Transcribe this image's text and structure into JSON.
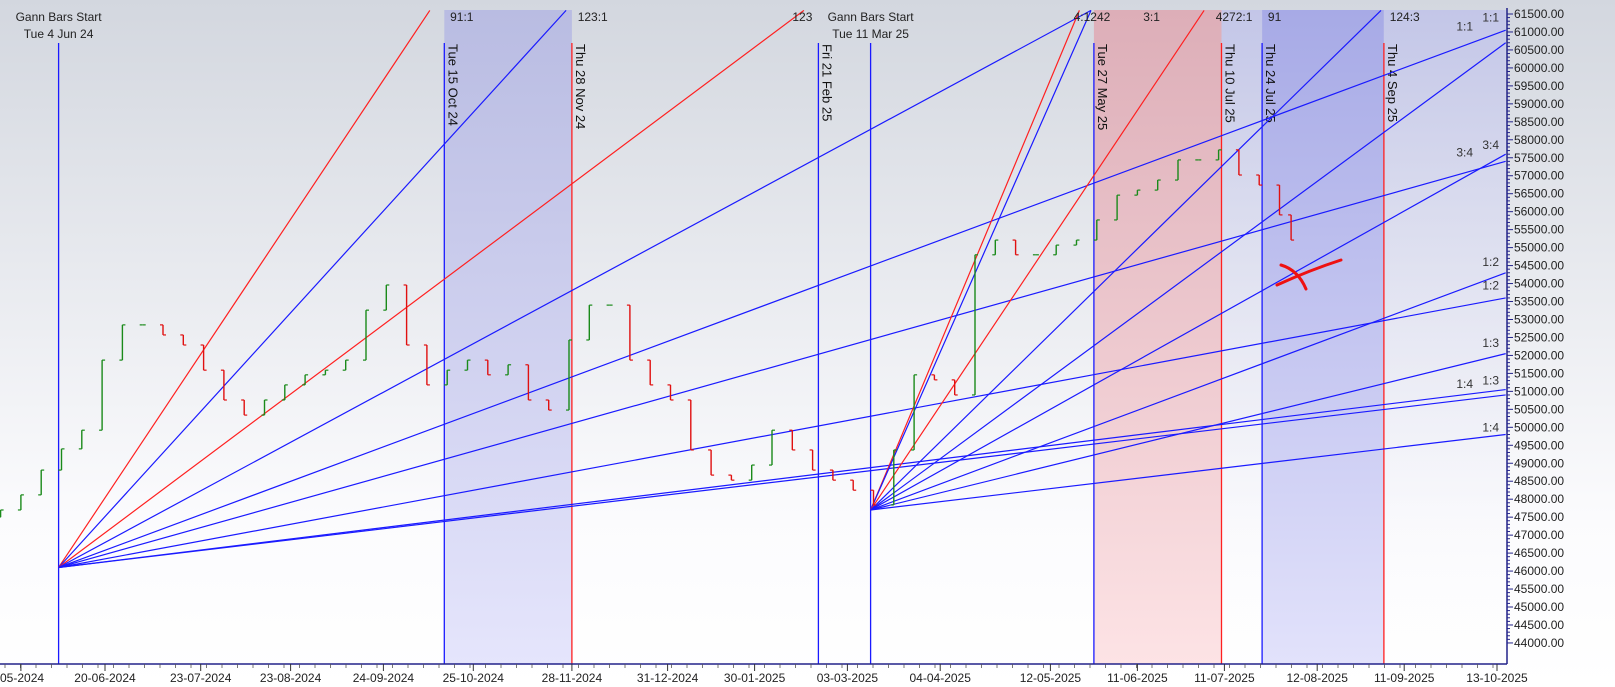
{
  "chart_data": {
    "type": "ohlc-bar with gann fans",
    "colors": {
      "fan_blue": "#1a1aff",
      "fan_red": "#ff2020",
      "bar_up": "#1a8a1a",
      "bar_down": "#e01010",
      "axis": "#22228a"
    },
    "ylim": [
      44000,
      61500
    ],
    "y_ticks": [
      "61500.00",
      "61000.00",
      "60500.00",
      "60000.00",
      "59500.00",
      "59000.00",
      "58500.00",
      "58000.00",
      "57500.00",
      "57000.00",
      "56500.00",
      "56000.00",
      "55500.00",
      "55000.00",
      "54500.00",
      "54000.00",
      "53500.00",
      "53000.00",
      "52500.00",
      "52000.00",
      "51500.00",
      "51000.00",
      "50500.00",
      "50000.00",
      "49500.00",
      "49000.00",
      "48500.00",
      "48000.00",
      "47500.00",
      "47000.00",
      "46500.00",
      "46000.00",
      "45500.00",
      "45000.00",
      "44500.00",
      "44000.00"
    ],
    "x_ticks": [
      {
        "date": "2024-05-22",
        "label": "05-2024"
      },
      {
        "date": "2024-06-20",
        "label": "20-06-2024"
      },
      {
        "date": "2024-07-23",
        "label": "23-07-2024"
      },
      {
        "date": "2024-08-23",
        "label": "23-08-2024"
      },
      {
        "date": "2024-09-24",
        "label": "24-09-2024"
      },
      {
        "date": "2024-10-25",
        "label": "25-10-2024"
      },
      {
        "date": "2024-11-28",
        "label": "28-11-2024"
      },
      {
        "date": "2024-12-31",
        "label": "31-12-2024"
      },
      {
        "date": "2025-01-30",
        "label": "30-01-2025"
      },
      {
        "date": "2025-03-03",
        "label": "03-03-2025"
      },
      {
        "date": "2025-04-04",
        "label": "04-04-2025"
      },
      {
        "date": "2025-05-12",
        "label": "12-05-2025"
      },
      {
        "date": "2025-06-11",
        "label": "11-06-2025"
      },
      {
        "date": "2025-07-11",
        "label": "11-07-2025"
      },
      {
        "date": "2025-08-12",
        "label": "12-08-2025"
      },
      {
        "date": "2025-09-11",
        "label": "11-09-2025"
      },
      {
        "date": "2025-10-13",
        "label": "13-10-2025"
      }
    ],
    "price_dates": [
      "2024-05-15",
      "2024-05-22",
      "2024-05-29",
      "2024-06-05",
      "2024-06-12",
      "2024-06-19",
      "2024-06-26",
      "2024-07-03",
      "2024-07-10",
      "2024-07-17",
      "2024-07-24",
      "2024-07-31",
      "2024-08-07",
      "2024-08-14",
      "2024-08-21",
      "2024-08-28",
      "2024-09-04",
      "2024-09-11",
      "2024-09-18",
      "2024-09-25",
      "2024-10-02",
      "2024-10-09",
      "2024-10-16",
      "2024-10-23",
      "2024-10-30",
      "2024-11-06",
      "2024-11-13",
      "2024-11-20",
      "2024-11-27",
      "2024-12-04",
      "2024-12-11",
      "2024-12-18",
      "2024-12-25",
      "2025-01-01",
      "2025-01-08",
      "2025-01-15",
      "2025-01-22",
      "2025-01-29",
      "2025-02-05",
      "2025-02-12",
      "2025-02-19",
      "2025-02-26",
      "2025-03-05",
      "2025-03-12",
      "2025-03-19",
      "2025-03-26",
      "2025-04-02",
      "2025-04-09",
      "2025-04-16",
      "2025-04-23",
      "2025-04-30",
      "2025-05-07",
      "2025-05-14",
      "2025-05-21",
      "2025-05-28",
      "2025-06-04",
      "2025-06-11",
      "2025-06-18",
      "2025-06-25",
      "2025-07-02",
      "2025-07-09",
      "2025-07-16",
      "2025-07-23",
      "2025-07-30",
      "2025-08-03"
    ],
    "price_close": [
      47700,
      48120,
      48810,
      49400,
      49920,
      51870,
      52850,
      52850,
      52570,
      52290,
      51590,
      50760,
      50340,
      50760,
      51180,
      51460,
      51590,
      51870,
      53260,
      53960,
      52290,
      51180,
      51590,
      51870,
      51460,
      51740,
      50760,
      50480,
      52430,
      53400,
      53400,
      51870,
      51180,
      50760,
      49370,
      48670,
      48530,
      48950,
      49920,
      49370,
      48810,
      48530,
      48250,
      47840,
      49370,
      51460,
      51320,
      50900,
      54800,
      55210,
      54800,
      54800,
      55070,
      55210,
      55770,
      56460,
      56600,
      56880,
      57440,
      57440,
      57720,
      57020,
      56740,
      55910,
      55210
    ],
    "gann_origins": {
      "A": {
        "date": "2024-06-04",
        "price": 46100,
        "title": "Gann Bars Start",
        "subtitle": "Tue 4 Jun 24"
      },
      "B": {
        "date": "2025-03-11",
        "price": 47700,
        "title": "Gann Bars Start",
        "subtitle": "Tue 11 Mar 25"
      }
    },
    "fan_lines": [
      {
        "origin": "A",
        "to_date": "2024-10-10",
        "to_price": 61600,
        "color": "red"
      },
      {
        "origin": "A",
        "to_date": "2024-11-26",
        "to_price": 61600,
        "color": "blue"
      },
      {
        "origin": "A",
        "to_date": "2025-02-16",
        "to_price": 61600,
        "color": "red"
      },
      {
        "origin": "A",
        "to_date": "2025-05-26",
        "to_price": 61600,
        "color": "blue"
      },
      {
        "origin": "A",
        "to_date": "2025-10-16",
        "to_price": 61050,
        "color": "blue"
      },
      {
        "origin": "A",
        "to_date": "2025-10-16",
        "to_price": 57400,
        "color": "blue"
      },
      {
        "origin": "A",
        "to_date": "2025-10-16",
        "to_price": 53600,
        "color": "blue"
      },
      {
        "origin": "A",
        "to_date": "2025-10-16",
        "to_price": 51050,
        "color": "blue"
      },
      {
        "origin": "A",
        "to_date": "2025-10-16",
        "to_price": 50900,
        "color": "blue"
      },
      {
        "origin": "B",
        "to_date": "2025-05-22",
        "to_price": 61600,
        "color": "red"
      },
      {
        "origin": "B",
        "to_date": "2025-05-26",
        "to_price": 61600,
        "color": "blue"
      },
      {
        "origin": "B",
        "to_date": "2025-07-04",
        "to_price": 61600,
        "color": "red"
      },
      {
        "origin": "B",
        "to_date": "2025-09-03",
        "to_price": 61600,
        "color": "blue"
      },
      {
        "origin": "B",
        "to_date": "2025-10-16",
        "to_price": 60700,
        "color": "blue"
      },
      {
        "origin": "B",
        "to_date": "2025-10-16",
        "to_price": 57600,
        "color": "blue"
      },
      {
        "origin": "B",
        "to_date": "2025-10-16",
        "to_price": 54300,
        "color": "blue"
      },
      {
        "origin": "B",
        "to_date": "2025-10-16",
        "to_price": 52050,
        "color": "blue"
      },
      {
        "origin": "B",
        "to_date": "2025-10-16",
        "to_price": 49800,
        "color": "blue"
      }
    ],
    "vertical_lines": [
      {
        "date": "2024-06-04",
        "color": "blue",
        "label": ""
      },
      {
        "date": "2024-10-15",
        "color": "blue",
        "label": "Tue 15 Oct 24"
      },
      {
        "date": "2024-11-28",
        "color": "red",
        "label": "Thu 28 Nov 24"
      },
      {
        "date": "2025-02-21",
        "color": "blue",
        "label": "Fri 21 Feb 25"
      },
      {
        "date": "2025-03-11",
        "color": "blue",
        "label": ""
      },
      {
        "date": "2025-05-27",
        "color": "blue",
        "label": "Tue 27 May 25"
      },
      {
        "date": "2025-07-10",
        "color": "red",
        "label": "Thu 10 Jul 25"
      },
      {
        "date": "2025-07-24",
        "color": "blue",
        "label": "Thu 24 Jul 25"
      },
      {
        "date": "2025-09-04",
        "color": "red",
        "label": "Thu 4 Sep 25"
      }
    ],
    "shaded_zones": [
      {
        "from": "2024-10-15",
        "to": "2024-11-28",
        "color": "lavender"
      },
      {
        "from": "2025-05-27",
        "to": "2025-07-10",
        "color": "pink"
      },
      {
        "from": "2025-07-10",
        "to": "2025-07-24",
        "color": "pale"
      },
      {
        "from": "2025-07-24",
        "to": "2025-09-04",
        "color": "blue"
      },
      {
        "from": "2025-09-04",
        "to": "2025-10-16",
        "color": "pale"
      }
    ],
    "top_labels": [
      {
        "date": "2024-10-17",
        "text": "91:1"
      },
      {
        "date": "2024-11-30",
        "text": "123:1"
      },
      {
        "date": "2025-02-21",
        "text": "123"
      },
      {
        "date": "2025-05-20",
        "text": "4:1242"
      },
      {
        "date": "2025-06-13",
        "text": "3:1"
      },
      {
        "date": "2025-07-08",
        "text": "4272:1"
      },
      {
        "date": "2025-07-26",
        "text": "91"
      },
      {
        "date": "2025-09-06",
        "text": "124:3"
      }
    ],
    "right_labels": [
      {
        "price": 61400,
        "text": "1:1"
      },
      {
        "price": 61150,
        "text": "1:1"
      },
      {
        "price": 57850,
        "text": "3:4"
      },
      {
        "price": 57650,
        "text": "3:4"
      },
      {
        "price": 54600,
        "text": "1:2"
      },
      {
        "price": 53950,
        "text": "1:2"
      },
      {
        "price": 52350,
        "text": "1:3"
      },
      {
        "price": 51300,
        "text": "1:3"
      },
      {
        "price": 51200,
        "text": "1:4"
      },
      {
        "price": 50000,
        "text": "1:4"
      }
    ]
  }
}
